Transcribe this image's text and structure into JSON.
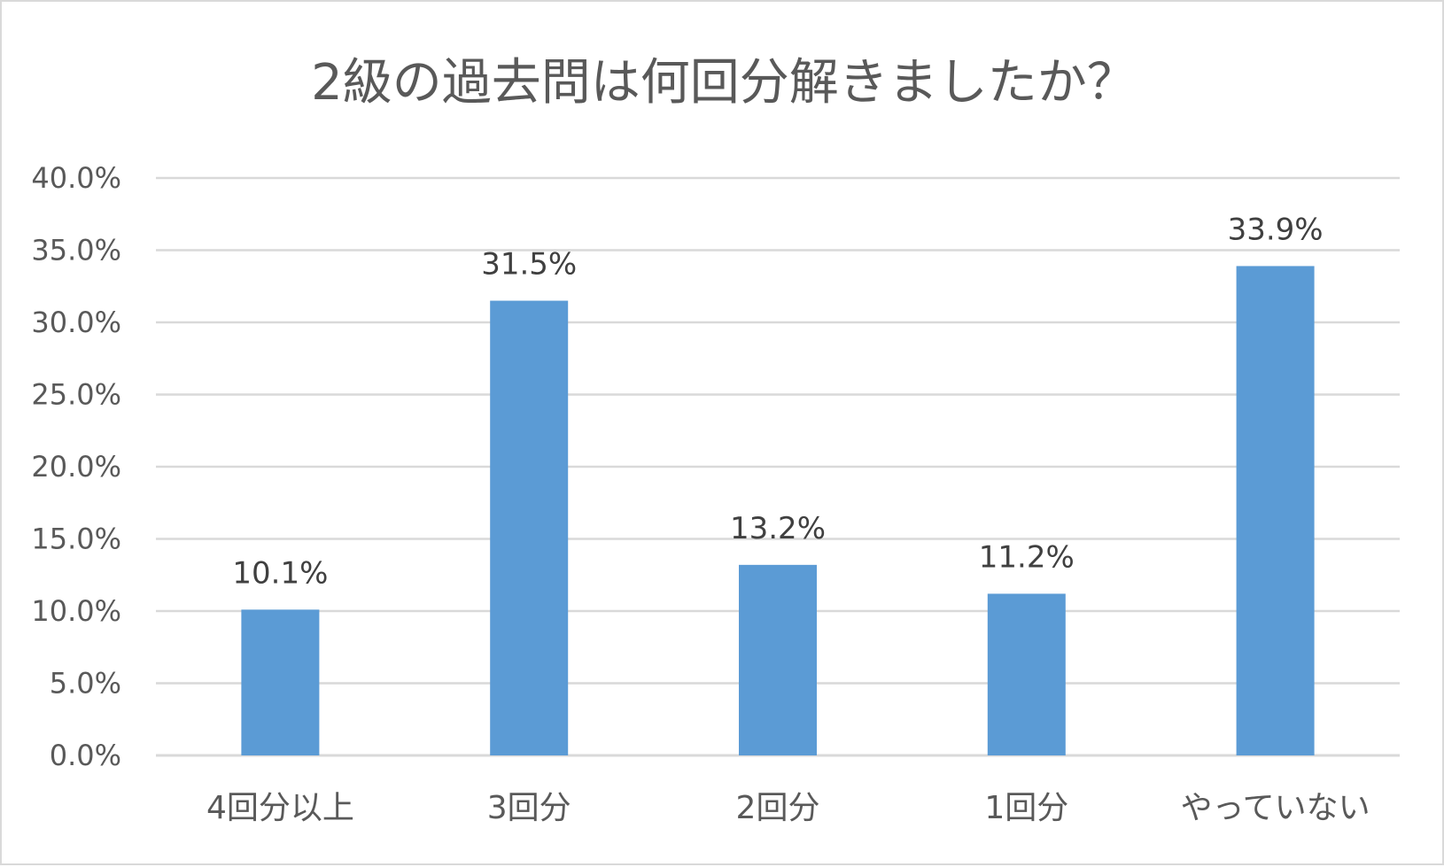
{
  "chart_data": {
    "type": "bar",
    "title": "2級の過去問は何回分解きましたか？",
    "categories": [
      "4回分以上",
      "3回分",
      "2回分",
      "1回分",
      "やっていない"
    ],
    "values": [
      10.1,
      31.5,
      13.2,
      11.2,
      33.9
    ],
    "data_labels": [
      "10.1%",
      "31.5%",
      "13.2%",
      "11.2%",
      "33.9%"
    ],
    "y_ticks": [
      "0.0%",
      "5.0%",
      "10.0%",
      "15.0%",
      "20.0%",
      "25.0%",
      "30.0%",
      "35.0%",
      "40.0%"
    ],
    "ylim": [
      0,
      40
    ],
    "y_unit": "%",
    "grid": true,
    "legend": "none",
    "xlabel": "",
    "ylabel": "",
    "colors": {
      "bar": "#5b9bd5",
      "grid": "#d9d9d9",
      "axis_text": "#595959",
      "label_text": "#404040",
      "border": "#d9d9d9"
    }
  }
}
